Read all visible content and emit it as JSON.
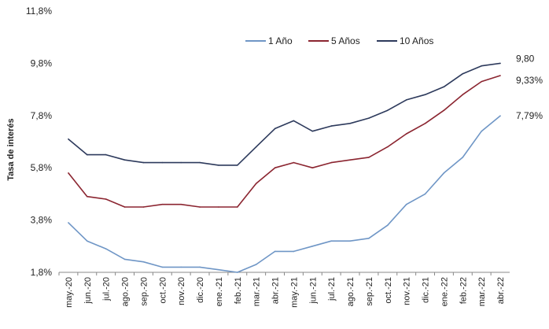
{
  "chart_data": {
    "type": "line",
    "ylabel": "Tasa de interés",
    "xlabel": "",
    "ylim": [
      1.8,
      11.8
    ],
    "yticks": [
      "1,8%",
      "3,8%",
      "5,8%",
      "7,8%",
      "9,8%",
      "11,8%"
    ],
    "ytick_values": [
      1.8,
      3.8,
      5.8,
      7.8,
      9.8,
      11.8
    ],
    "categories": [
      "may.-20",
      "jun.-20",
      "jul.-20",
      "ago.-20",
      "sep.-20",
      "oct.-20",
      "nov.-20",
      "dic.-20",
      "ene.-21",
      "feb.-21",
      "mar.-21",
      "abr.-21",
      "may.-21",
      "jun.-21",
      "jul.-21",
      "ago.-21",
      "sep.-21",
      "oct.-21",
      "nov.-21",
      "dic.-21",
      "ene.-22",
      "feb.-22",
      "mar.-22",
      "abr.-22"
    ],
    "legend_position": "top-right",
    "series": [
      {
        "name": "1 Año",
        "color": "#6f96c6",
        "values": [
          3.7,
          3.0,
          2.7,
          2.3,
          2.2,
          2.0,
          2.0,
          2.0,
          1.9,
          1.8,
          2.1,
          2.6,
          2.6,
          2.8,
          3.0,
          3.0,
          3.1,
          3.6,
          4.4,
          4.8,
          5.6,
          6.2,
          7.2,
          7.79
        ],
        "end_label": "7,79%"
      },
      {
        "name": "5 Años",
        "color": "#8b2530",
        "values": [
          5.6,
          4.7,
          4.6,
          4.3,
          4.3,
          4.4,
          4.4,
          4.3,
          4.3,
          4.3,
          5.2,
          5.8,
          6.0,
          5.8,
          6.0,
          6.1,
          6.2,
          6.6,
          7.1,
          7.5,
          8.0,
          8.6,
          9.1,
          9.33
        ],
        "end_label": "9,33%"
      },
      {
        "name": "10 Años",
        "color": "#2d3a5c",
        "values": [
          6.9,
          6.3,
          6.3,
          6.1,
          6.0,
          6.0,
          6.0,
          6.0,
          5.9,
          5.9,
          6.6,
          7.3,
          7.6,
          7.2,
          7.4,
          7.5,
          7.7,
          8.0,
          8.4,
          8.6,
          8.9,
          9.4,
          9.7,
          9.8
        ],
        "end_label": "9,80"
      }
    ]
  }
}
